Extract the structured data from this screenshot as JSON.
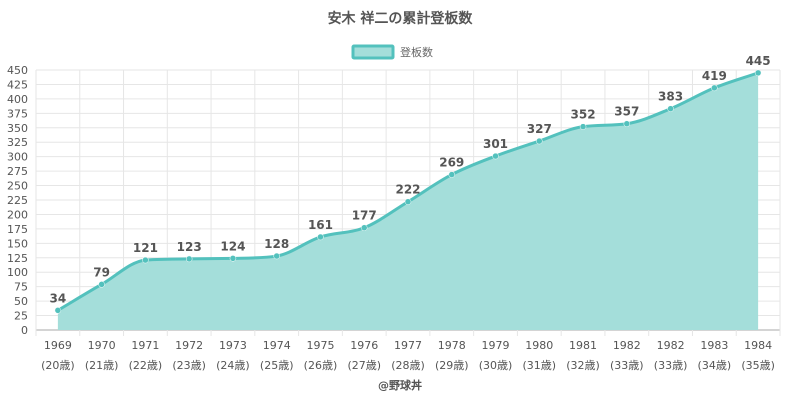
{
  "colors": {
    "line": "#53c1bd",
    "fill": "#a4deda",
    "grid": "#e6e6e6",
    "axis": "#aaaaaa",
    "text": "#555555"
  },
  "chart_data": {
    "type": "area",
    "title": "安木 祥二の累計登板数",
    "legend": {
      "label": "登板数",
      "placement": "top-center"
    },
    "credit": "@野球丼",
    "categories": [
      [
        "1969",
        "(20歳)"
      ],
      [
        "1970",
        "(21歳)"
      ],
      [
        "1971",
        "(22歳)"
      ],
      [
        "1972",
        "(23歳)"
      ],
      [
        "1973",
        "(24歳)"
      ],
      [
        "1974",
        "(25歳)"
      ],
      [
        "1975",
        "(26歳)"
      ],
      [
        "1976",
        "(27歳)"
      ],
      [
        "1977",
        "(28歳)"
      ],
      [
        "1978",
        "(29歳)"
      ],
      [
        "1979",
        "(30歳)"
      ],
      [
        "1980",
        "(31歳)"
      ],
      [
        "1981",
        "(32歳)"
      ],
      [
        "1982",
        "(33歳)"
      ],
      [
        "1982",
        "(33歳)"
      ],
      [
        "1983",
        "(34歳)"
      ],
      [
        "1984",
        "(35歳)"
      ]
    ],
    "values": [
      34,
      79,
      121,
      123,
      124,
      128,
      161,
      177,
      222,
      269,
      301,
      327,
      352,
      357,
      383,
      419,
      445
    ],
    "ylim": [
      0,
      450
    ],
    "ytick_step": 25,
    "grid": true
  }
}
